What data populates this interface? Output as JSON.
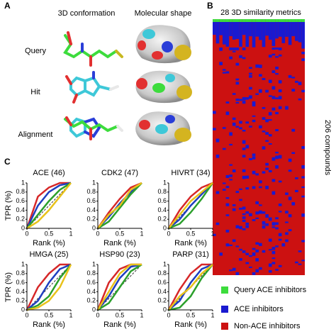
{
  "panel_a": {
    "label": "A",
    "column_headers": [
      "3D conformation",
      "Molecular shape"
    ],
    "row_labels": [
      "Query",
      "Hit",
      "Alignment"
    ]
  },
  "panel_b": {
    "label": "B",
    "title": "28 3D similarity metrics",
    "y_label": "206 compounds",
    "legend": [
      {
        "label": "Query ACE inhibitors",
        "color": "#3ddc3d"
      },
      {
        "label": "ACE inhibitors",
        "color": "#1a1ad0"
      },
      {
        "label": "Non-ACE inhibitors",
        "color": "#cc1111"
      }
    ]
  },
  "panel_c": {
    "label": "C"
  },
  "chart_data": [
    {
      "type": "line",
      "title": "ACE (46)",
      "x_label": "Rank (%)",
      "y_label": "TPR (%)",
      "x": [
        0,
        0.25,
        0.5,
        0.75,
        1
      ],
      "xlim": [
        0,
        1
      ],
      "ylim": [
        0,
        1
      ],
      "xticks": [
        0,
        0.5,
        1
      ],
      "yticks": [
        0,
        0.2,
        0.4,
        0.6,
        0.8,
        1
      ],
      "series": [
        {
          "color": "#d62728",
          "values": [
            0,
            0.7,
            0.9,
            1,
            1
          ]
        },
        {
          "color": "#1f3fbf",
          "values": [
            0,
            0.5,
            0.8,
            0.95,
            1
          ]
        },
        {
          "color": "#2ca02c",
          "values": [
            0,
            0.3,
            0.6,
            0.85,
            1
          ]
        },
        {
          "color": "#e8c21a",
          "values": [
            0,
            0.15,
            0.4,
            0.7,
            1
          ]
        }
      ]
    },
    {
      "type": "line",
      "title": "CDK2 (47)",
      "x_label": "Rank (%)",
      "y_label": "TPR (%)",
      "x": [
        0,
        0.25,
        0.5,
        0.75,
        1
      ],
      "xlim": [
        0,
        1
      ],
      "ylim": [
        0,
        1
      ],
      "xticks": [
        0,
        0.5,
        1
      ],
      "yticks": [
        0,
        0.2,
        0.4,
        0.6,
        0.8,
        1
      ],
      "series": [
        {
          "color": "#d62728",
          "values": [
            0,
            0.35,
            0.65,
            0.9,
            1
          ]
        },
        {
          "color": "#1f3fbf",
          "values": [
            0,
            0.25,
            0.55,
            0.8,
            1
          ]
        },
        {
          "color": "#2ca02c",
          "values": [
            0,
            0.15,
            0.45,
            0.75,
            1
          ]
        },
        {
          "color": "#e8c21a",
          "values": [
            0,
            0.3,
            0.5,
            0.85,
            1
          ]
        }
      ]
    },
    {
      "type": "line",
      "title": "HIVRT (34)",
      "x_label": "Rank (%)",
      "y_label": "TPR (%)",
      "x": [
        0,
        0.25,
        0.5,
        0.75,
        1
      ],
      "xlim": [
        0,
        1
      ],
      "ylim": [
        0,
        1
      ],
      "xticks": [
        0,
        0.5,
        1
      ],
      "yticks": [
        0,
        0.2,
        0.4,
        0.6,
        0.8,
        1
      ],
      "series": [
        {
          "color": "#d62728",
          "values": [
            0,
            0.4,
            0.7,
            0.9,
            1
          ]
        },
        {
          "color": "#1f3fbf",
          "values": [
            0,
            0.2,
            0.5,
            0.75,
            1
          ]
        },
        {
          "color": "#2ca02c",
          "values": [
            0,
            0.1,
            0.35,
            0.65,
            1
          ]
        },
        {
          "color": "#e8c21a",
          "values": [
            0,
            0.3,
            0.6,
            0.8,
            1
          ]
        }
      ]
    },
    {
      "type": "line",
      "title": "HMGA (25)",
      "x_label": "Rank (%)",
      "y_label": "TPR (%)",
      "x": [
        0,
        0.25,
        0.5,
        0.75,
        1
      ],
      "xlim": [
        0,
        1
      ],
      "ylim": [
        0,
        1
      ],
      "xticks": [
        0,
        0.5,
        1
      ],
      "yticks": [
        0,
        0.2,
        0.4,
        0.6,
        0.8,
        1
      ],
      "series": [
        {
          "color": "#d62728",
          "values": [
            0,
            0.5,
            0.8,
            1,
            1
          ]
        },
        {
          "color": "#1f3fbf",
          "values": [
            0,
            0.2,
            0.6,
            0.9,
            1
          ]
        },
        {
          "color": "#2ca02c",
          "values": [
            0,
            0.1,
            0.3,
            0.7,
            1
          ]
        },
        {
          "color": "#e8c21a",
          "values": [
            0,
            0.05,
            0.2,
            0.5,
            1
          ]
        }
      ]
    },
    {
      "type": "line",
      "title": "HSP90 (23)",
      "x_label": "Rank (%)",
      "y_label": "TPR (%)",
      "x": [
        0,
        0.25,
        0.5,
        0.75,
        1
      ],
      "xlim": [
        0,
        1
      ],
      "ylim": [
        0,
        1
      ],
      "xticks": [
        0,
        0.5,
        1
      ],
      "yticks": [
        0,
        0.2,
        0.4,
        0.6,
        0.8,
        1
      ],
      "series": [
        {
          "color": "#d62728",
          "values": [
            0,
            0.6,
            0.9,
            1,
            1
          ]
        },
        {
          "color": "#1f3fbf",
          "values": [
            0,
            0.3,
            0.7,
            0.95,
            1
          ]
        },
        {
          "color": "#2ca02c",
          "values": [
            0,
            0.15,
            0.5,
            0.85,
            1
          ]
        },
        {
          "color": "#e8c21a",
          "values": [
            0,
            0.4,
            0.8,
            1,
            1
          ]
        }
      ]
    },
    {
      "type": "line",
      "title": "PARP (31)",
      "x_label": "Rank (%)",
      "y_label": "TPR (%)",
      "x": [
        0,
        0.25,
        0.5,
        0.75,
        1
      ],
      "xlim": [
        0,
        1
      ],
      "ylim": [
        0,
        1
      ],
      "xticks": [
        0,
        0.5,
        1
      ],
      "yticks": [
        0,
        0.2,
        0.4,
        0.6,
        0.8,
        1
      ],
      "series": [
        {
          "color": "#d62728",
          "values": [
            0,
            0.45,
            0.8,
            1,
            1
          ]
        },
        {
          "color": "#1f3fbf",
          "values": [
            0,
            0.2,
            0.6,
            0.9,
            1
          ]
        },
        {
          "color": "#2ca02c",
          "values": [
            0,
            0.05,
            0.3,
            0.7,
            1
          ]
        },
        {
          "color": "#e8c21a",
          "values": [
            0,
            0.3,
            0.5,
            0.8,
            1
          ]
        }
      ]
    }
  ]
}
